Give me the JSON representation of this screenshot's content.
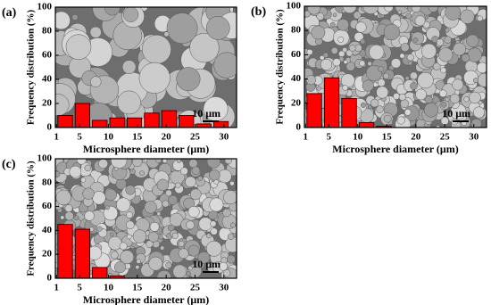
{
  "chart_data": [
    {
      "type": "histogram",
      "panel_label": "(a)",
      "xlabel": "Microsphere diameter (μm)",
      "ylabel": "Frequency distribution (%)",
      "scale_label": "10 μm",
      "bins": [
        1,
        4,
        7,
        10,
        13,
        16,
        19,
        22,
        25,
        28,
        31
      ],
      "values": [
        10,
        20,
        6,
        8,
        8,
        12,
        14,
        10,
        3,
        5
      ],
      "color": "#ff0000",
      "xlim": [
        0.8,
        32.2
      ],
      "ylim": [
        0,
        100
      ],
      "xticks": [
        1,
        5,
        10,
        15,
        20,
        25,
        30
      ],
      "yticks": [
        0,
        20,
        40,
        60,
        80,
        100
      ]
    },
    {
      "type": "histogram",
      "panel_label": "(b)",
      "xlabel": "Microsphere diameter (μm)",
      "ylabel": "Frequency distribution (%)",
      "scale_label": "10 μm",
      "bins": [
        1,
        4,
        7,
        10,
        13,
        16
      ],
      "values": [
        28,
        41,
        24,
        4,
        1
      ],
      "color": "#ff0000",
      "xlim": [
        0.8,
        32.2
      ],
      "ylim": [
        0,
        100
      ],
      "xticks": [
        1,
        5,
        10,
        15,
        20,
        25,
        30
      ],
      "yticks": [
        0,
        20,
        40,
        60,
        80,
        100
      ]
    },
    {
      "type": "histogram",
      "panel_label": "(c)",
      "xlabel": "Microsphere diameter (μm)",
      "ylabel": "Frequency distribution (%)",
      "scale_label": "10 μm",
      "bins": [
        1,
        4,
        7,
        10,
        13
      ],
      "values": [
        45,
        41,
        9,
        2
      ],
      "color": "#ff0000",
      "xlim": [
        0.8,
        32.2
      ],
      "ylim": [
        0,
        100
      ],
      "xticks": [
        1,
        5,
        10,
        15,
        20,
        25,
        30
      ],
      "yticks": [
        0,
        20,
        40,
        60,
        80,
        100
      ]
    }
  ]
}
